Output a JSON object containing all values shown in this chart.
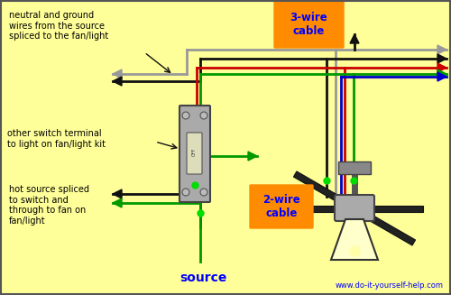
{
  "bg_color": "#FFFF99",
  "border_color": "#333333",
  "watermark": "www.do-it-yourself-help.com",
  "source_label": "source",
  "cable_3wire_label": "3-wire\ncable",
  "cable_2wire_label": "2-wire\ncable",
  "annotation1": "neutral and ground\nwires from the source\nspliced to the fan/light",
  "annotation2": "other switch terminal\nto light on fan/light kit",
  "annotation3": "hot source spliced\nto switch and\nthrough to fan on\nfan/light",
  "text_color": "#000000",
  "blue_text_color": "#0000FF",
  "orange_box_color": "#FF8C00",
  "wire_black": "#111111",
  "wire_red": "#CC0000",
  "wire_green": "#009900",
  "wire_blue": "#0000CC",
  "wire_gray": "#999999",
  "switch_color": "#AAAAAA",
  "switch_border": "#444444"
}
